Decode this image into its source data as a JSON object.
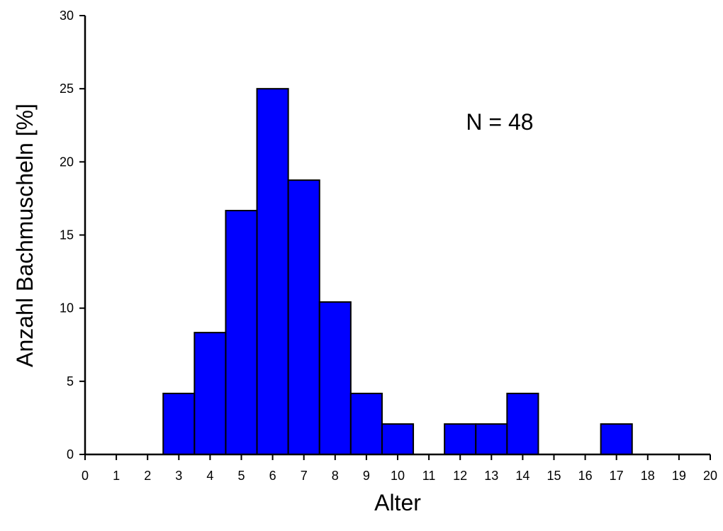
{
  "chart_data": {
    "type": "bar",
    "subtype": "histogram",
    "x": [
      3,
      4,
      5,
      6,
      7,
      8,
      9,
      10,
      12,
      13,
      14,
      17
    ],
    "values": [
      4.17,
      8.33,
      16.67,
      25.0,
      18.75,
      10.42,
      4.17,
      2.08,
      2.08,
      2.08,
      4.17,
      2.08
    ],
    "xlabel": "Alter",
    "ylabel": "Anzahl Bachmuscheln [%]",
    "xlim": [
      0,
      20
    ],
    "ylim": [
      0,
      30
    ],
    "xticks": [
      "0",
      "1",
      "2",
      "3",
      "4",
      "5",
      "6",
      "7",
      "8",
      "9",
      "10",
      "11",
      "12",
      "13",
      "14",
      "15",
      "16",
      "17",
      "18",
      "19",
      "20"
    ],
    "yticks": [
      "0",
      "5",
      "10",
      "15",
      "20",
      "25",
      "30"
    ],
    "annotation": "N = 48",
    "bar_color": "#0000ff",
    "edge_color": "#000000",
    "grid": false,
    "legend": "none"
  }
}
